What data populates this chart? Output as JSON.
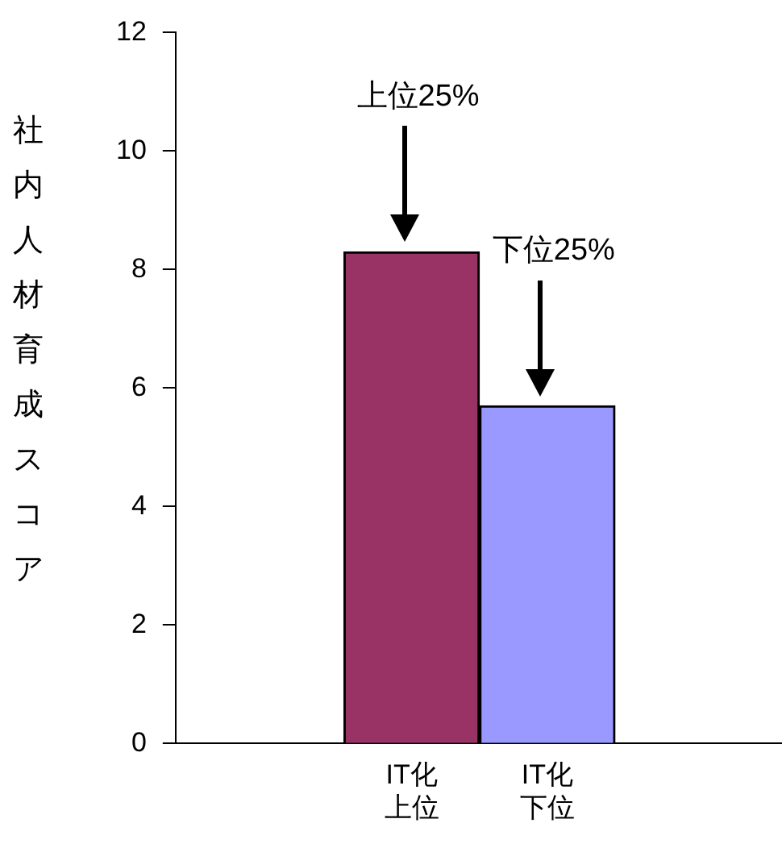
{
  "chart_data": {
    "type": "bar",
    "ylabel": "社内人材育成スコア",
    "categories": [
      "IT化上位",
      "IT化下位"
    ],
    "values": [
      8.3,
      5.7
    ],
    "colors": [
      "#993366",
      "#9999ff"
    ],
    "ylim": [
      0,
      12
    ],
    "yticks": [
      0,
      2,
      4,
      6,
      8,
      10,
      12
    ],
    "grid": false,
    "legend": false,
    "annotations": [
      "上位25%",
      "下位25%"
    ]
  }
}
